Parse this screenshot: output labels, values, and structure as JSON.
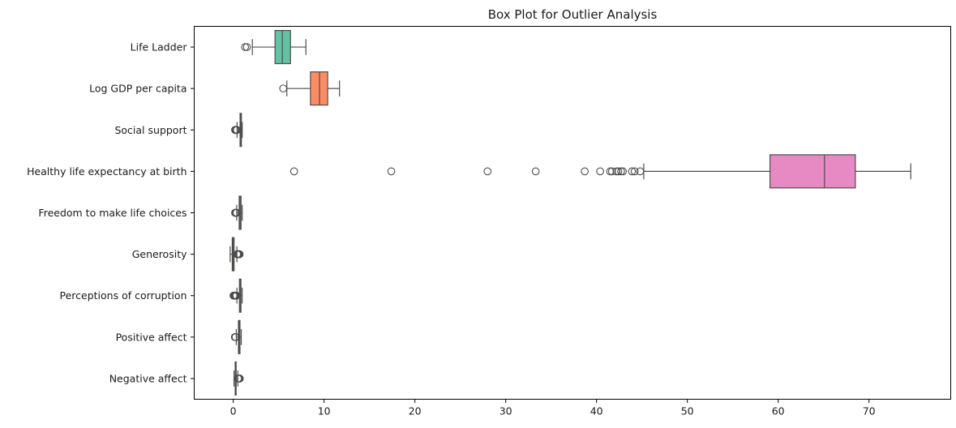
{
  "chart_data": {
    "type": "boxplot",
    "orientation": "horizontal",
    "title": "Box Plot for Outlier Analysis",
    "xlabel": "",
    "ylabel": "",
    "xlim": [
      -4.3,
      79
    ],
    "x_ticks": [
      0,
      10,
      20,
      30,
      40,
      50,
      60,
      70
    ],
    "grid": false,
    "series": [
      {
        "name": "Life Ladder",
        "color": "#66c2a5",
        "whisker_low": 2.1,
        "q1": 4.6,
        "median": 5.4,
        "q3": 6.3,
        "whisker_high": 8.0,
        "outliers": [
          1.3,
          1.5
        ]
      },
      {
        "name": "Log GDP per capita",
        "color": "#fc8d62",
        "whisker_low": 5.9,
        "q1": 8.5,
        "median": 9.5,
        "q3": 10.4,
        "whisker_high": 11.7,
        "outliers": [
          5.5
        ]
      },
      {
        "name": "Social support",
        "color": "#8da0cb",
        "whisker_low": 0.42,
        "q1": 0.75,
        "median": 0.84,
        "q3": 0.9,
        "whisker_high": 0.99,
        "outliers": [
          0.2,
          0.25,
          0.28,
          0.31,
          0.34,
          0.37,
          0.4
        ]
      },
      {
        "name": "Healthy life expectancy at birth",
        "color": "#e78ac3",
        "whisker_low": 45.2,
        "q1": 59.1,
        "median": 65.1,
        "q3": 68.5,
        "whisker_high": 74.6,
        "outliers": [
          6.7,
          17.4,
          28.0,
          33.3,
          38.7,
          40.4,
          41.5,
          41.7,
          42.2,
          42.4,
          42.7,
          42.9,
          43.9,
          44.2,
          44.8
        ]
      },
      {
        "name": "Freedom to make life choices",
        "color": "#a6d854",
        "whisker_low": 0.38,
        "q1": 0.65,
        "median": 0.76,
        "q3": 0.86,
        "whisker_high": 0.99,
        "outliers": [
          0.2,
          0.25,
          0.29,
          0.33,
          0.36
        ]
      },
      {
        "name": "Generosity",
        "color": "#ffd92f",
        "whisker_low": -0.34,
        "q1": -0.11,
        "median": -0.02,
        "q3": 0.09,
        "whisker_high": 0.4,
        "outliers": [
          0.42,
          0.46,
          0.5,
          0.55,
          0.6,
          0.65,
          0.7
        ]
      },
      {
        "name": "Perceptions of corruption",
        "color": "#e5c494",
        "whisker_low": 0.4,
        "q1": 0.68,
        "median": 0.77,
        "q3": 0.85,
        "whisker_high": 0.98,
        "outliers": [
          0.03,
          0.07,
          0.11,
          0.15,
          0.19,
          0.23,
          0.27,
          0.31,
          0.35
        ]
      },
      {
        "name": "Positive affect",
        "color": "#b3b3b3",
        "whisker_low": 0.33,
        "q1": 0.57,
        "median": 0.66,
        "q3": 0.74,
        "whisker_high": 0.88,
        "outliers": [
          0.18,
          0.22,
          0.26
        ]
      },
      {
        "name": "Negative affect",
        "color": "#66c2a5",
        "whisker_low": 0.08,
        "q1": 0.21,
        "median": 0.26,
        "q3": 0.32,
        "whisker_high": 0.5,
        "outliers": [
          0.52,
          0.56,
          0.6,
          0.64,
          0.68,
          0.72
        ]
      }
    ]
  }
}
